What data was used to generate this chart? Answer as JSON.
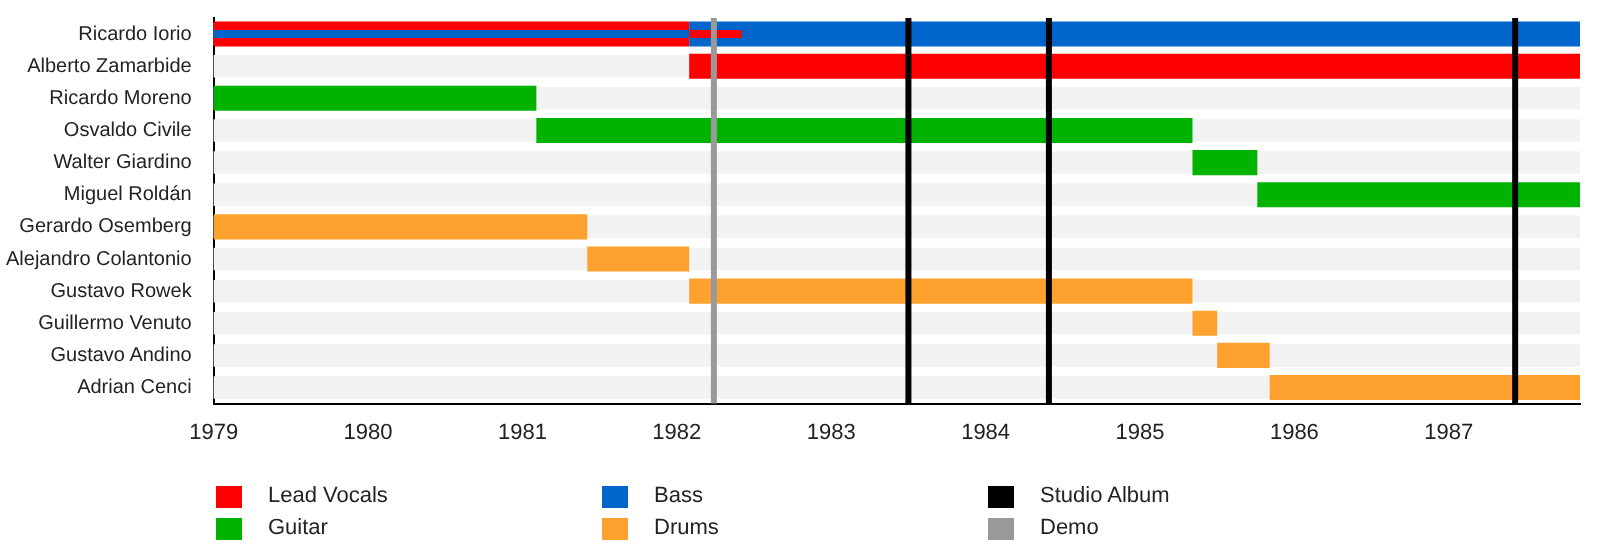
{
  "chart_data": {
    "type": "bar",
    "orientation": "horizontal",
    "categories": [
      "Ricardo Iorio",
      "Alberto Zamarbide",
      "Ricardo Moreno",
      "Osvaldo Civile",
      "Walter Giardino",
      "Miguel Roldán",
      "Gerardo Osemberg",
      "Alejandro Colantonio",
      "Gustavo Rowek",
      "Guillermo Venuto",
      "Gustavo Andino",
      "Adrian Cenci"
    ],
    "series": [
      {
        "name": "Lead Vocals",
        "color": "#ff0000",
        "values": [
          3.08,
          5.77,
          null,
          null,
          null,
          null,
          null,
          null,
          null,
          null,
          null,
          null
        ],
        "base": [
          1979,
          1982.08,
          null,
          null,
          null,
          null,
          null,
          null,
          null,
          null,
          null,
          null
        ]
      },
      {
        "name": "Guitar",
        "color": "#00b300",
        "values": [
          null,
          null,
          2.09,
          4.25,
          0.42,
          2.09,
          null,
          null,
          null,
          null,
          null,
          null
        ],
        "base": [
          null,
          null,
          1979,
          1981.09,
          1985.34,
          1985.76,
          null,
          null,
          null,
          null,
          null,
          null
        ]
      },
      {
        "name": "Bass",
        "color": "#0066cc",
        "values": [
          5.77,
          null,
          null,
          null,
          null,
          null,
          null,
          null,
          null,
          null,
          null,
          null
        ],
        "base": [
          1982.08,
          null,
          null,
          null,
          null,
          null,
          null,
          null,
          null,
          null,
          null,
          null
        ]
      },
      {
        "name": "Drums",
        "color": "#ffa12e",
        "values": [
          null,
          null,
          null,
          null,
          null,
          null,
          2.42,
          0.66,
          3.26,
          0.16,
          0.34,
          2.01
        ],
        "base": [
          null,
          null,
          null,
          null,
          null,
          null,
          1979,
          1981.42,
          1982.08,
          1985.34,
          1985.5,
          1985.84
        ]
      },
      {
        "color": "#0066cc",
        "values": [
          3.08,
          null,
          null,
          null,
          null,
          null,
          null,
          null,
          null,
          null,
          null,
          null
        ],
        "base": [
          1979,
          null,
          null,
          null,
          null,
          null,
          null,
          null,
          null,
          null,
          null,
          null
        ]
      },
      {
        "color": "#ff0000",
        "values": [
          0.34,
          null,
          null,
          null,
          null,
          null,
          null,
          null,
          null,
          null,
          null,
          null
        ],
        "base": [
          1982.08,
          null,
          null,
          null,
          null,
          null,
          null,
          null,
          null,
          null,
          null,
          null
        ]
      }
    ],
    "xlim": [
      1979,
      1987.85
    ],
    "xticks": [
      1979,
      1980,
      1981,
      1982,
      1983,
      1984,
      1985,
      1986,
      1987
    ],
    "ref_lines": [
      {
        "axis": "x",
        "value": 1983.5,
        "label": "Studio Album",
        "color": "#000000"
      },
      {
        "axis": "x",
        "value": 1984.41,
        "color": "#000000"
      },
      {
        "axis": "x",
        "value": 1987.43,
        "color": "#000000"
      },
      {
        "axis": "x",
        "value": 1982.24,
        "label": "Demo",
        "color": "#999999"
      }
    ],
    "grid": false,
    "legend": "bottom"
  }
}
